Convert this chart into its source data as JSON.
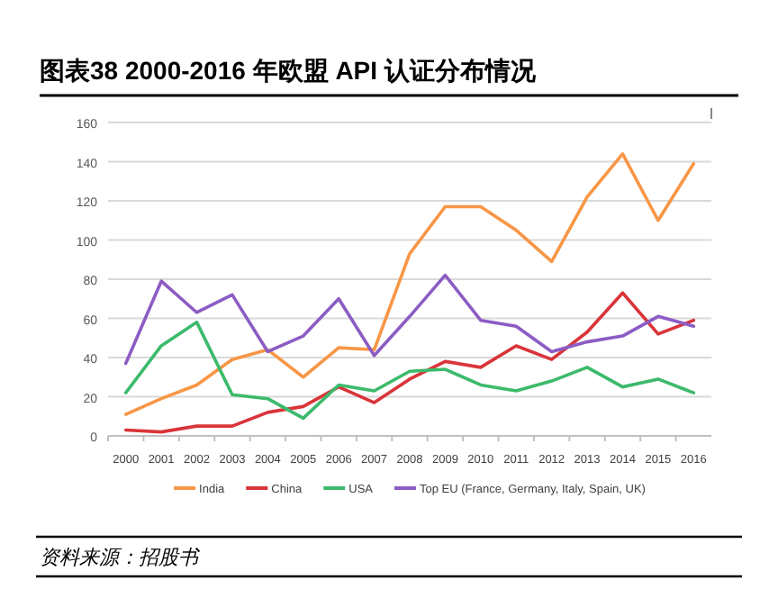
{
  "chart_data": {
    "type": "line",
    "title": "图表38    2000-2016 年欧盟 API 认证分布情况",
    "categories": [
      "2000",
      "2001",
      "2002",
      "2003",
      "2004",
      "2005",
      "2006",
      "2007",
      "2008",
      "2009",
      "2010",
      "2011",
      "2012",
      "2013",
      "2014",
      "2015",
      "2016"
    ],
    "series": [
      {
        "name": "India",
        "color": "#f79646",
        "values": [
          11,
          19,
          26,
          39,
          44,
          30,
          45,
          44,
          93,
          117,
          117,
          105,
          89,
          122,
          144,
          110,
          139
        ]
      },
      {
        "name": "China",
        "color": "#d9343a",
        "values": [
          3,
          2,
          5,
          5,
          12,
          15,
          25,
          17,
          29,
          38,
          35,
          46,
          39,
          53,
          73,
          52,
          59
        ]
      },
      {
        "name": "USA",
        "color": "#3cba6b",
        "values": [
          22,
          46,
          58,
          21,
          19,
          9,
          26,
          23,
          33,
          34,
          26,
          23,
          28,
          35,
          25,
          29,
          22
        ]
      },
      {
        "name": "Top EU (France, Germany, Italy, Spain, UK)",
        "color": "#8c5cc4",
        "values": [
          37,
          79,
          63,
          72,
          43,
          51,
          70,
          41,
          61,
          82,
          59,
          56,
          43,
          48,
          51,
          61,
          56
        ]
      }
    ],
    "ylim": [
      0,
      160
    ],
    "yticks": [
      0,
      20,
      40,
      60,
      80,
      100,
      120,
      140,
      160
    ],
    "grid": "y",
    "legend": "bottom",
    "marker": "none",
    "line_style": "solid",
    "annotations": [
      "资料来源：招股书"
    ]
  }
}
